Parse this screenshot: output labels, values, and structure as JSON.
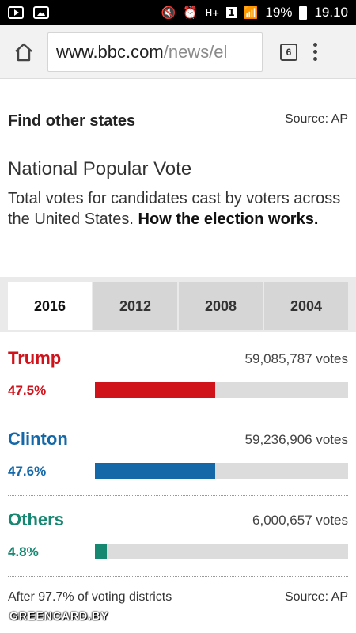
{
  "status_bar": {
    "battery": "19%",
    "time": "19.10",
    "left_icons": [
      "youtube-icon",
      "image-icon"
    ],
    "right_icons": [
      "mute-icon",
      "alarm-icon",
      "network-icon",
      "signal-icon",
      "battery-icon"
    ],
    "network_label": "H+",
    "sim_label": "1"
  },
  "browser": {
    "url_host": "www.bbc.com",
    "url_path": "/news/el",
    "tab_count": "6"
  },
  "find_states": {
    "title": "Find other states",
    "source": "Source: AP"
  },
  "national_vote": {
    "title": "National Popular Vote",
    "description": "Total votes for candidates cast by voters across the United States. ",
    "link": "How the election works."
  },
  "year_tabs": [
    {
      "label": "2016",
      "active": true
    },
    {
      "label": "2012",
      "active": false
    },
    {
      "label": "2008",
      "active": false
    },
    {
      "label": "2004",
      "active": false
    }
  ],
  "candidates": [
    {
      "name": "Trump",
      "votes": "59,085,787 votes",
      "percent": "47.5%",
      "share": 0.475,
      "color": "#d0121b"
    },
    {
      "name": "Clinton",
      "votes": "59,236,906 votes",
      "percent": "47.6%",
      "share": 0.476,
      "color": "#1468a8"
    },
    {
      "name": "Others",
      "votes": "6,000,657 votes",
      "percent": "4.8%",
      "share": 0.048,
      "color": "#168771"
    }
  ],
  "footer": {
    "note": "After 97.7% of voting districts",
    "source": "Source: AP"
  },
  "watermark": "GREENCARD.BY"
}
